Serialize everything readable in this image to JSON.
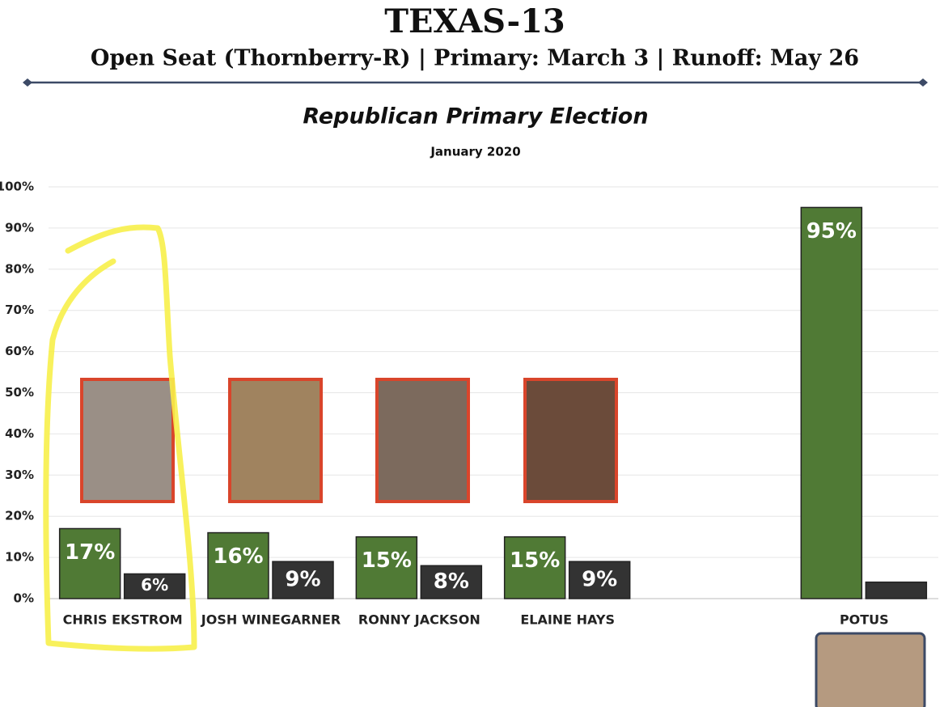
{
  "chart_data": {
    "type": "bar",
    "title": "TEXAS-13",
    "subtitle": "Open Seat (Thornberry-R) | Primary: March 3 | Runoff: May 26",
    "chart_title": "Republican Primary Election",
    "date": "January 2020",
    "categories": [
      "CHRIS EKSTROM",
      "JOSH WINEGARNER",
      "RONNY JACKSON",
      "ELAINE HAYS",
      null,
      "POTUS"
    ],
    "series": [
      {
        "color": "#507a35",
        "values": [
          17,
          16,
          15,
          15,
          null,
          95
        ],
        "value_labels": [
          "17%",
          "16%",
          "15%",
          "15%",
          null,
          "95%"
        ]
      },
      {
        "color": "#333333",
        "values": [
          6,
          9,
          8,
          9,
          null,
          4
        ],
        "value_labels": [
          "6%",
          "9%",
          "8%",
          "9%",
          null,
          null
        ]
      }
    ],
    "ylim": [
      0,
      100
    ],
    "yticks": [
      {
        "value": 0,
        "label": "0%"
      },
      {
        "value": 10,
        "label": "10%"
      },
      {
        "value": 20,
        "label": "20%"
      },
      {
        "value": 30,
        "label": "30%"
      },
      {
        "value": 40,
        "label": "40%"
      },
      {
        "value": 50,
        "label": "50%"
      },
      {
        "value": 60,
        "label": "60%"
      },
      {
        "value": 70,
        "label": "70%"
      },
      {
        "value": 80,
        "label": "80%"
      },
      {
        "value": 90,
        "label": "90%"
      },
      {
        "value": 100,
        "label": "100%"
      }
    ],
    "grid": true
  }
}
